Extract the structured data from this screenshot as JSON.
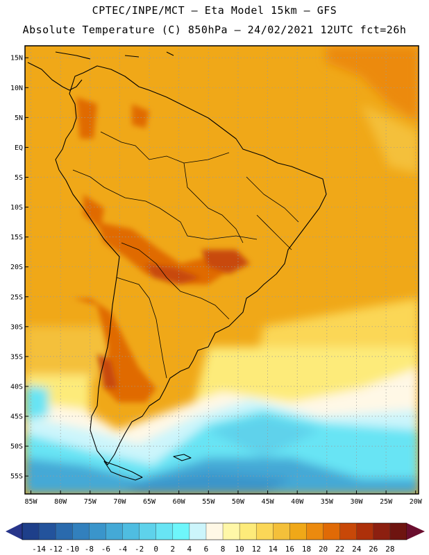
{
  "header": {
    "line1": "CPTEC/INPE/MCT –  Eta Model 15km – GFS",
    "line2": "Absolute Temperature (C) 850hPa – 24/02/2021 12UTC fct=26h"
  },
  "map": {
    "region": "South America",
    "lon_range": [
      -86,
      -19.5
    ],
    "lat_range": [
      -58,
      17
    ],
    "lat_ticks": [
      {
        "value": 15,
        "label": "15N"
      },
      {
        "value": 10,
        "label": "10N"
      },
      {
        "value": 5,
        "label": "5N"
      },
      {
        "value": 0,
        "label": "EQ"
      },
      {
        "value": -5,
        "label": "5S"
      },
      {
        "value": -10,
        "label": "10S"
      },
      {
        "value": -15,
        "label": "15S"
      },
      {
        "value": -20,
        "label": "20S"
      },
      {
        "value": -25,
        "label": "25S"
      },
      {
        "value": -30,
        "label": "30S"
      },
      {
        "value": -35,
        "label": "35S"
      },
      {
        "value": -40,
        "label": "40S"
      },
      {
        "value": -45,
        "label": "45S"
      },
      {
        "value": -50,
        "label": "50S"
      },
      {
        "value": -55,
        "label": "55S"
      }
    ],
    "lon_ticks": [
      {
        "value": -85,
        "label": "85W"
      },
      {
        "value": -80,
        "label": "80W"
      },
      {
        "value": -75,
        "label": "75W"
      },
      {
        "value": -70,
        "label": "70W"
      },
      {
        "value": -65,
        "label": "65W"
      },
      {
        "value": -60,
        "label": "60W"
      },
      {
        "value": -55,
        "label": "55W"
      },
      {
        "value": -50,
        "label": "50W"
      },
      {
        "value": -45,
        "label": "45W"
      },
      {
        "value": -40,
        "label": "40W"
      },
      {
        "value": -35,
        "label": "35W"
      },
      {
        "value": -30,
        "label": "30W"
      },
      {
        "value": -25,
        "label": "25W"
      },
      {
        "value": -20,
        "label": "20W"
      }
    ]
  },
  "colorbar": {
    "labels": [
      "-14",
      "-12",
      "-10",
      "-8",
      "-6",
      "-4",
      "-2",
      "0",
      "2",
      "4",
      "6",
      "8",
      "10",
      "12",
      "14",
      "16",
      "18",
      "20",
      "22",
      "24",
      "26",
      "28"
    ],
    "colors": [
      "#1e3f8a",
      "#23539c",
      "#2a6aad",
      "#3280bd",
      "#3a95cb",
      "#44a9d6",
      "#4fbde1",
      "#5ed2eb",
      "#68e4f4",
      "#6ef6fb",
      "#ccf5fb",
      "#fff8e6",
      "#fff7a8",
      "#fdeb7a",
      "#fbd757",
      "#f4c03a",
      "#f0a818",
      "#ec8a0e",
      "#e06a06",
      "#c84808",
      "#ad300a",
      "#8c1f10",
      "#6e1410"
    ],
    "under_color": "#27358a",
    "over_color": "#6a0e2e"
  }
}
